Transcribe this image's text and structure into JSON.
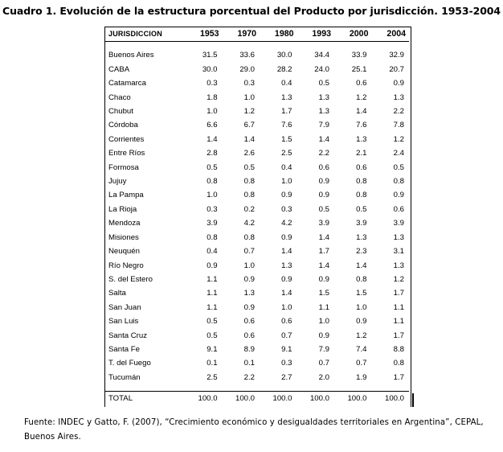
{
  "title": "Cuadro 1. Evolución de la estructura porcentual del Producto por jurisdicción. 1953-2004",
  "table": {
    "header": [
      "JURISDICCION",
      "1953",
      "1970",
      "1980",
      "1993",
      "2000",
      "2004"
    ],
    "rows": [
      [
        "Buenos Aires",
        "31.5",
        "33.6",
        "30.0",
        "34.4",
        "33.9",
        "32.9"
      ],
      [
        "CABA",
        "30.0",
        "29.0",
        "28.2",
        "24.0",
        "25.1",
        "20.7"
      ],
      [
        "Catamarca",
        "0.3",
        "0.3",
        "0.4",
        "0.5",
        "0.6",
        "0.9"
      ],
      [
        "Chaco",
        "1.8",
        "1.0",
        "1.3",
        "1.3",
        "1.2",
        "1.3"
      ],
      [
        "Chubut",
        "1.0",
        "1.2",
        "1.7",
        "1.3",
        "1.4",
        "2.2"
      ],
      [
        "Córdoba",
        "6.6",
        "6.7",
        "7.6",
        "7.9",
        "7.6",
        "7.8"
      ],
      [
        "Corrientes",
        "1.4",
        "1.4",
        "1.5",
        "1.4",
        "1.3",
        "1.2"
      ],
      [
        "Entre Ríos",
        "2.8",
        "2.6",
        "2.5",
        "2.2",
        "2.1",
        "2.4"
      ],
      [
        "Formosa",
        "0.5",
        "0.5",
        "0.4",
        "0.6",
        "0.6",
        "0.5"
      ],
      [
        "Jujuy",
        "0.8",
        "0.8",
        "1.0",
        "0.9",
        "0.8",
        "0.8"
      ],
      [
        "La Pampa",
        "1.0",
        "0.8",
        "0.9",
        "0.9",
        "0.8",
        "0.9"
      ],
      [
        "La Rioja",
        "0.3",
        "0.2",
        "0.3",
        "0.5",
        "0.5",
        "0.6"
      ],
      [
        "Mendoza",
        "3.9",
        "4.2",
        "4.2",
        "3.9",
        "3.9",
        "3.9"
      ],
      [
        "Misiones",
        "0.8",
        "0.8",
        "0.9",
        "1.4",
        "1.3",
        "1.3"
      ],
      [
        "Neuquén",
        "0.4",
        "0.7",
        "1.4",
        "1.7",
        "2.3",
        "3.1"
      ],
      [
        "Río Negro",
        "0.9",
        "1.0",
        "1.3",
        "1.4",
        "1.4",
        "1.3"
      ],
      [
        "S. del Estero",
        "1.1",
        "0.9",
        "0.9",
        "0.9",
        "0.8",
        "1.2"
      ],
      [
        "Salta",
        "1.1",
        "1.3",
        "1.4",
        "1.5",
        "1.5",
        "1.7"
      ],
      [
        "San Juan",
        "1.1",
        "0.9",
        "1.0",
        "1.1",
        "1.0",
        "1.1"
      ],
      [
        "San Luis",
        "0.5",
        "0.6",
        "0.6",
        "1.0",
        "0.9",
        "1.1"
      ],
      [
        "Santa Cruz",
        "0.5",
        "0.6",
        "0.7",
        "0.9",
        "1.2",
        "1.7"
      ],
      [
        "Santa Fe",
        "9.1",
        "8.9",
        "9.1",
        "7.9",
        "7.4",
        "8.8"
      ],
      [
        "T. del Fuego",
        "0.1",
        "0.1",
        "0.3",
        "0.7",
        "0.7",
        "0.8"
      ],
      [
        "Tucumán",
        "2.5",
        "2.2",
        "2.7",
        "2.0",
        "1.9",
        "1.7"
      ]
    ],
    "total": [
      "TOTAL",
      "100.0",
      "100.0",
      "100.0",
      "100.0",
      "100.0",
      "100.0"
    ]
  },
  "source": "Fuente: INDEC y Gatto, F. (2007), “Crecimiento económico y desigualdades territoriales en Argentina”, CEPAL, Buenos Aires."
}
